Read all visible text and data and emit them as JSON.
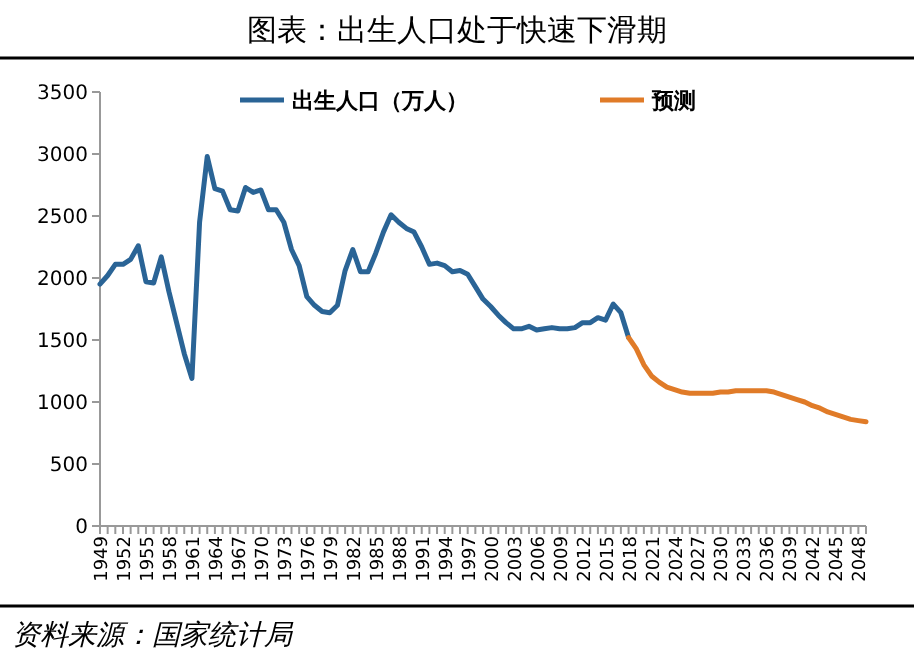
{
  "chart_data": {
    "type": "line",
    "title": "图表：出生人口处于快速下滑期",
    "categories": [
      "1949",
      null,
      null,
      "1952",
      null,
      null,
      "1955",
      null,
      null,
      "1958",
      null,
      null,
      "1961",
      null,
      null,
      "1964",
      null,
      null,
      "1967",
      null,
      null,
      "1970",
      null,
      null,
      "1973",
      null,
      null,
      "1976",
      null,
      null,
      "1979",
      null,
      null,
      "1982",
      null,
      null,
      "1985",
      null,
      null,
      "1988",
      null,
      null,
      "1991",
      null,
      null,
      "1994",
      null,
      null,
      "1997",
      null,
      null,
      "2000",
      null,
      null,
      "2003",
      null,
      null,
      "2006",
      null,
      null,
      "2009",
      null,
      null,
      "2012",
      null,
      null,
      "2015",
      null,
      null,
      "2018",
      null,
      null,
      "2021",
      null,
      null,
      "2024",
      null,
      null,
      "2027",
      null,
      null,
      "2030",
      null,
      null,
      "2033",
      null,
      null,
      "2036",
      null,
      null,
      "2039",
      null,
      null,
      "2042",
      null,
      null,
      "2045",
      null,
      null,
      "2048",
      null
    ],
    "series": [
      {
        "name": "出生人口（万人）",
        "color": "#2a6496",
        "values": [
          1950,
          2020,
          2110,
          2110,
          2150,
          2260,
          1970,
          1960,
          2170,
          1890,
          1640,
          1390,
          1190,
          2450,
          2980,
          2720,
          2700,
          2550,
          2540,
          2730,
          2690,
          2710,
          2550,
          2550,
          2450,
          2230,
          2100,
          1850,
          1780,
          1730,
          1720,
          1780,
          2060,
          2230,
          2050,
          2050,
          2200,
          2370,
          2510,
          2450,
          2400,
          2370,
          2250,
          2110,
          2120,
          2100,
          2050,
          2060,
          2030,
          1930,
          1830,
          1770,
          1700,
          1640,
          1590,
          1590,
          1610,
          1580,
          1590,
          1600,
          1590,
          1590,
          1600,
          1640,
          1640,
          1680,
          1660,
          1790,
          1720,
          1520,
          null,
          null,
          null,
          null,
          null,
          null,
          null,
          null,
          null,
          null,
          null,
          null,
          null,
          null,
          null,
          null,
          null,
          null,
          null,
          null,
          null,
          null,
          null,
          null,
          null,
          null,
          null,
          null,
          null,
          null,
          null
        ]
      },
      {
        "name": "预测",
        "color": "#e07b28",
        "values": [
          null,
          null,
          null,
          null,
          null,
          null,
          null,
          null,
          null,
          null,
          null,
          null,
          null,
          null,
          null,
          null,
          null,
          null,
          null,
          null,
          null,
          null,
          null,
          null,
          null,
          null,
          null,
          null,
          null,
          null,
          null,
          null,
          null,
          null,
          null,
          null,
          null,
          null,
          null,
          null,
          null,
          null,
          null,
          null,
          null,
          null,
          null,
          null,
          null,
          null,
          null,
          null,
          null,
          null,
          null,
          null,
          null,
          null,
          null,
          null,
          null,
          null,
          null,
          null,
          null,
          null,
          null,
          null,
          null,
          1520,
          1430,
          1300,
          1210,
          1160,
          1120,
          1100,
          1080,
          1070,
          1070,
          1070,
          1070,
          1080,
          1080,
          1090,
          1090,
          1090,
          1090,
          1090,
          1080,
          1060,
          1040,
          1020,
          1000,
          970,
          950,
          920,
          900,
          880,
          860,
          850,
          840
        ]
      }
    ],
    "ylim": [
      0,
      3500
    ],
    "yticks": [
      0,
      500,
      1000,
      1500,
      2000,
      2500,
      3000,
      3500
    ],
    "legend": "top",
    "grid": false,
    "annotations": [
      "资料来源：国家统计局"
    ]
  }
}
